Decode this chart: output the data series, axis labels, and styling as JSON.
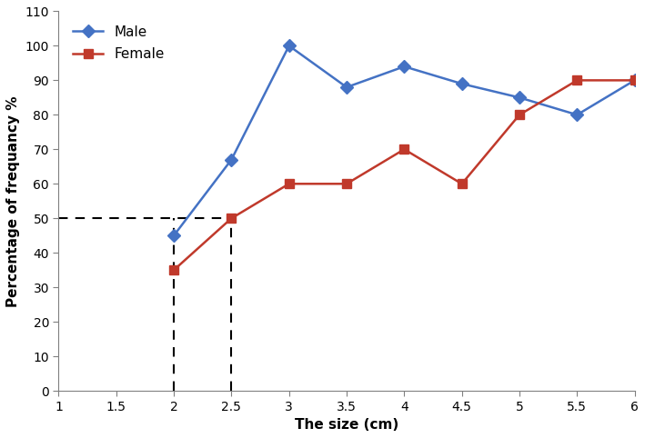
{
  "male_x": [
    2,
    2.5,
    3,
    3.5,
    4,
    4.5,
    5,
    5.5,
    6
  ],
  "male_y": [
    45,
    67,
    100,
    88,
    94,
    89,
    85,
    80,
    90
  ],
  "female_x": [
    2,
    2.5,
    3,
    3.5,
    4,
    4.5,
    5,
    5.5,
    6
  ],
  "female_y": [
    35,
    50,
    60,
    60,
    70,
    60,
    80,
    90,
    90
  ],
  "male_color": "#4472C4",
  "female_color": "#C0392B",
  "xlabel": "The size (cm)",
  "ylabel": "Percentage of frequancy %",
  "xlim": [
    1,
    6
  ],
  "ylim": [
    0,
    110
  ],
  "xticks": [
    1,
    1.5,
    2,
    2.5,
    3,
    3.5,
    4,
    4.5,
    5,
    5.5,
    6
  ],
  "xtick_labels": [
    "1",
    "1.5",
    "2",
    "2.5",
    "3",
    "3.5",
    "4",
    "4.5",
    "5",
    "5.5",
    "6"
  ],
  "yticks": [
    0,
    10,
    20,
    30,
    40,
    50,
    60,
    70,
    80,
    90,
    100,
    110
  ],
  "dashed_line_y": 50,
  "dashed_x1": 2,
  "dashed_x2": 2.5,
  "male_label": "Male",
  "female_label": "Female",
  "bg_color": "#f2f2f2",
  "marker_male": "D",
  "marker_female": "s",
  "marker_size": 7,
  "linewidth": 1.8,
  "legend_fontsize": 11,
  "axis_label_fontsize": 11,
  "tick_fontsize": 10
}
